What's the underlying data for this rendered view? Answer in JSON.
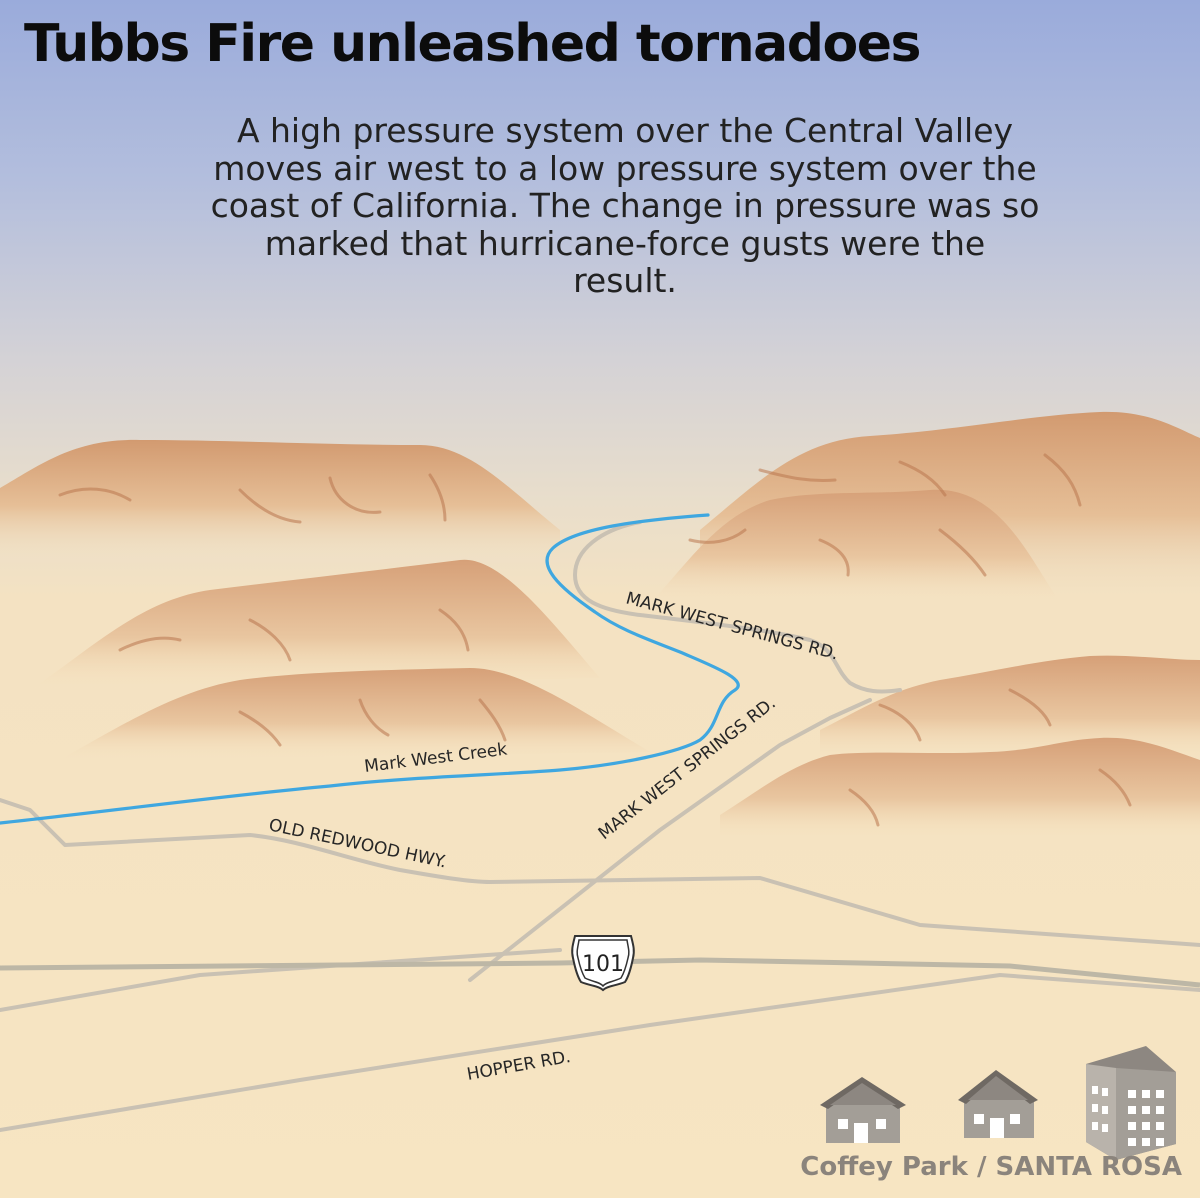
{
  "header": {
    "title": "Tubbs Fire unleashed tornadoes",
    "description": "A high pressure system over the Central Valley moves air west to a low pressure system over the coast of California. The change in pressure was so marked that hurricane-force gusts were the result."
  },
  "map": {
    "creek_label": "Mark West Creek",
    "roads": {
      "mark_west_springs_upper": "MARK WEST SPRINGS RD.",
      "mark_west_springs_lower": "MARK WEST SPRINGS RD.",
      "old_redwood_hwy": "OLD REDWOOD HWY.",
      "hopper_rd": "HOPPER RD."
    },
    "highway_shield": "101",
    "location_caption": "Coffey Park / SANTA ROSA"
  },
  "colors": {
    "sky_top": "#9aabdb",
    "ground": "#f6e4c0",
    "hill": "#d9a77e",
    "creek": "#3fa7e0",
    "road": "#c7bfb2",
    "building": "#a39e97"
  }
}
